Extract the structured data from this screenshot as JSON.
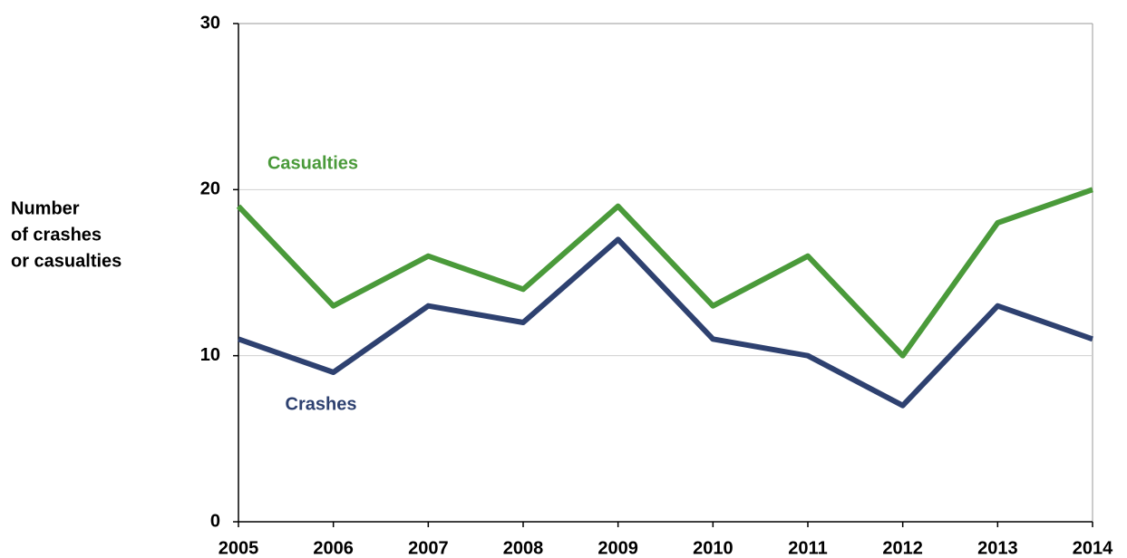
{
  "chart_data": {
    "type": "line",
    "ylabel": [
      "Number",
      "of crashes",
      "or casualties"
    ],
    "x": [
      2005,
      2006,
      2007,
      2008,
      2009,
      2010,
      2011,
      2012,
      2013,
      2014
    ],
    "series": [
      {
        "name": "Casualties",
        "color": "#4a9a3a",
        "values": [
          19,
          13,
          16,
          14,
          19,
          13,
          16,
          10,
          18,
          20
        ]
      },
      {
        "name": "Crashes",
        "color": "#2e4170",
        "values": [
          11,
          9,
          13,
          12,
          17,
          11,
          10,
          7,
          13,
          11
        ]
      }
    ],
    "xlim": [
      2005,
      2014
    ],
    "xticks": [
      2005,
      2006,
      2007,
      2008,
      2009,
      2010,
      2011,
      2012,
      2013,
      2014
    ],
    "ylim": [
      0,
      30
    ],
    "yticks": [
      0,
      10,
      20,
      30
    ],
    "grid": true
  }
}
